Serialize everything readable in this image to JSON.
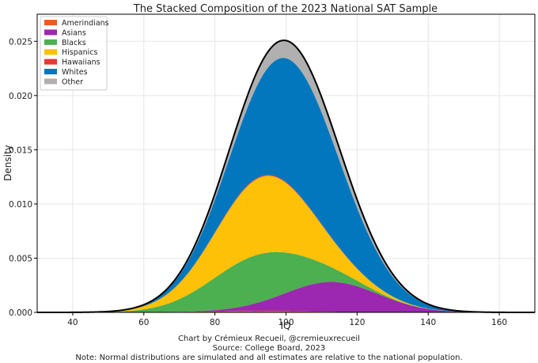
{
  "chart_data": {
    "type": "area",
    "stacked": true,
    "title": "The Stacked Composition of the 2023 National SAT Sample",
    "xlabel": "IQ",
    "ylabel": "Density",
    "xlim": [
      30,
      170
    ],
    "ylim": [
      0,
      0.0275
    ],
    "xticks": [
      "40",
      "60",
      "80",
      "100",
      "120",
      "140",
      "160"
    ],
    "xtick_values": [
      40,
      60,
      80,
      100,
      120,
      140,
      160
    ],
    "yticks": [
      "0.000",
      "0.005",
      "0.010",
      "0.015",
      "0.020",
      "0.025"
    ],
    "ytick_values": [
      0,
      0.005,
      0.01,
      0.015,
      0.02,
      0.025
    ],
    "grid": true,
    "legend_position": "top-left",
    "series": [
      {
        "name": "Amerindians",
        "color": "#ee5a24",
        "mean": 92,
        "sd": 14,
        "weight": 0.005
      },
      {
        "name": "Asians",
        "color": "#9c27b0",
        "mean": 113,
        "sd": 13,
        "weight": 0.09
      },
      {
        "name": "Blacks",
        "color": "#4caf50",
        "mean": 92,
        "sd": 13.5,
        "weight": 0.15
      },
      {
        "name": "Hispanics",
        "color": "#ffc107",
        "mean": 94,
        "sd": 13.5,
        "weight": 0.24
      },
      {
        "name": "Hawaiians",
        "color": "#e53935",
        "mean": 95,
        "sd": 14,
        "weight": 0.003
      },
      {
        "name": "Whites",
        "color": "#0277bd",
        "mean": 103,
        "sd": 14,
        "weight": 0.41
      },
      {
        "name": "Other",
        "color": "#b0b0b0",
        "mean": 102,
        "sd": 14.5,
        "weight": 0.06
      }
    ]
  },
  "captions": {
    "line1": "Chart by Crémieux Recueil, @cremieuxrecueil",
    "line2": "Source: College Board, 2023",
    "line3": "Note: Normal distributions are simulated and all estimates are relative to the national population."
  }
}
